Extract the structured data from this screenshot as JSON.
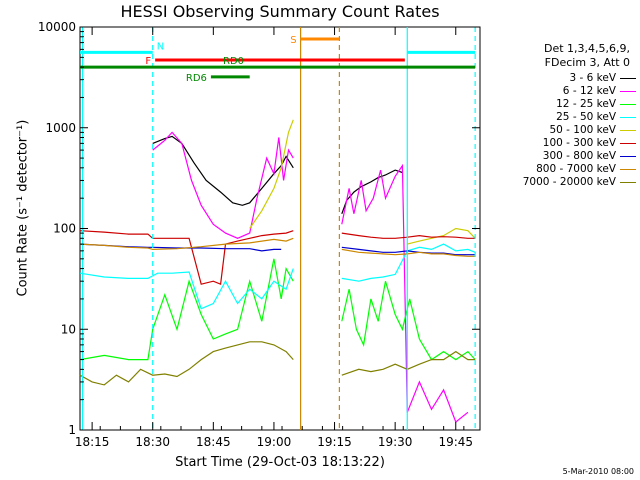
{
  "chart_data": {
    "type": "line",
    "title": "HESSI Observing Summary Count Rates",
    "xlabel": "Start Time (29-Oct-03 18:13:22)",
    "ylabel": "Count Rate (s⁻¹ detector⁻¹)",
    "yscale": "log",
    "ylim": [
      1,
      10000
    ],
    "xlim_minutes": [
      18.2,
      19.85
    ],
    "x_tick_labels": [
      "18:15",
      "18:30",
      "18:45",
      "19:00",
      "19:15",
      "19:30",
      "19:45"
    ],
    "y_tick_labels": [
      "1",
      "10",
      "100",
      "1000",
      "10000"
    ],
    "legend_header": [
      "Det 1,3,4,5,6,9,",
      "FDecim 3, Att 0"
    ],
    "legend_position": "right",
    "series": [
      {
        "name": "3 - 6 keV",
        "color": "#000000",
        "segments": [
          [
            [
              18.5,
              700
            ],
            [
              18.55,
              780
            ],
            [
              18.58,
              820
            ],
            [
              18.62,
              700
            ],
            [
              18.67,
              450
            ],
            [
              18.72,
              300
            ],
            [
              18.78,
              230
            ],
            [
              18.83,
              180
            ],
            [
              18.87,
              170
            ],
            [
              18.9,
              180
            ],
            [
              18.95,
              250
            ],
            [
              19.0,
              350
            ],
            [
              19.03,
              420
            ],
            [
              19.05,
              520
            ],
            [
              19.08,
              400
            ]
          ],
          [
            [
              19.28,
              140
            ],
            [
              19.3,
              190
            ],
            [
              19.33,
              230
            ],
            [
              19.36,
              260
            ],
            [
              19.4,
              290
            ],
            [
              19.43,
              320
            ],
            [
              19.46,
              340
            ],
            [
              19.5,
              380
            ],
            [
              19.53,
              360
            ]
          ]
        ]
      },
      {
        "name": "6 - 12 keV",
        "color": "#ff00ff",
        "segments": [
          [
            [
              18.5,
              600
            ],
            [
              18.55,
              750
            ],
            [
              18.58,
              900
            ],
            [
              18.62,
              700
            ],
            [
              18.66,
              300
            ],
            [
              18.7,
              170
            ],
            [
              18.75,
              110
            ],
            [
              18.8,
              90
            ],
            [
              18.85,
              80
            ],
            [
              18.9,
              90
            ],
            [
              18.93,
              200
            ],
            [
              18.97,
              500
            ],
            [
              19.0,
              350
            ],
            [
              19.02,
              800
            ],
            [
              19.04,
              300
            ],
            [
              19.06,
              600
            ],
            [
              19.08,
              500
            ]
          ],
          [
            [
              19.28,
              110
            ],
            [
              19.31,
              250
            ],
            [
              19.33,
              140
            ],
            [
              19.36,
              300
            ],
            [
              19.38,
              150
            ],
            [
              19.41,
              200
            ],
            [
              19.44,
              380
            ],
            [
              19.46,
              200
            ],
            [
              19.5,
              330
            ],
            [
              19.53,
              420
            ],
            [
              19.55,
              1.5
            ],
            [
              19.6,
              3
            ],
            [
              19.65,
              1.6
            ],
            [
              19.7,
              2.5
            ],
            [
              19.75,
              1.2
            ],
            [
              19.8,
              1.5
            ]
          ]
        ]
      },
      {
        "name": "12 - 25 keV",
        "color": "#00ff00",
        "segments": [
          [
            [
              18.2,
              5
            ],
            [
              18.3,
              5.5
            ],
            [
              18.4,
              5
            ],
            [
              18.48,
              5
            ],
            [
              18.5,
              10
            ],
            [
              18.55,
              22
            ],
            [
              18.6,
              10
            ],
            [
              18.65,
              30
            ],
            [
              18.7,
              14
            ],
            [
              18.75,
              8
            ],
            [
              18.8,
              9
            ],
            [
              18.85,
              10
            ],
            [
              18.9,
              30
            ],
            [
              18.95,
              12
            ],
            [
              19.0,
              50
            ],
            [
              19.03,
              20
            ],
            [
              19.05,
              40
            ],
            [
              19.08,
              30
            ]
          ],
          [
            [
              19.28,
              12
            ],
            [
              19.31,
              25
            ],
            [
              19.34,
              10
            ],
            [
              19.37,
              7
            ],
            [
              19.4,
              20
            ],
            [
              19.43,
              12
            ],
            [
              19.46,
              30
            ],
            [
              19.5,
              14
            ],
            [
              19.53,
              10
            ],
            [
              19.56,
              20
            ],
            [
              19.6,
              8
            ],
            [
              19.65,
              5
            ],
            [
              19.7,
              6
            ],
            [
              19.75,
              5
            ],
            [
              19.8,
              6
            ],
            [
              19.83,
              5
            ]
          ]
        ]
      },
      {
        "name": "25 - 50 keV",
        "color": "#00ffff",
        "segments": [
          [
            [
              18.2,
              36
            ],
            [
              18.3,
              33
            ],
            [
              18.4,
              32
            ],
            [
              18.48,
              32
            ],
            [
              18.52,
              36
            ],
            [
              18.58,
              36
            ],
            [
              18.65,
              37
            ],
            [
              18.7,
              16
            ],
            [
              18.75,
              18
            ],
            [
              18.8,
              30
            ],
            [
              18.85,
              18
            ],
            [
              18.9,
              25
            ],
            [
              18.95,
              20
            ],
            [
              19.0,
              30
            ],
            [
              19.05,
              25
            ],
            [
              19.08,
              40
            ]
          ],
          [
            [
              19.28,
              32
            ],
            [
              19.35,
              30
            ],
            [
              19.4,
              32
            ],
            [
              19.45,
              33
            ],
            [
              19.5,
              35
            ],
            [
              19.55,
              60
            ],
            [
              19.6,
              65
            ],
            [
              19.65,
              62
            ],
            [
              19.7,
              70
            ],
            [
              19.75,
              60
            ],
            [
              19.8,
              62
            ],
            [
              19.83,
              58
            ]
          ]
        ]
      },
      {
        "name": "50 - 100 keV",
        "color": "#cccc00",
        "segments": [
          [
            [
              18.9,
              100
            ],
            [
              18.95,
              150
            ],
            [
              19.0,
              250
            ],
            [
              19.03,
              400
            ],
            [
              19.06,
              900
            ],
            [
              19.08,
              1200
            ]
          ],
          [
            [
              19.55,
              70
            ],
            [
              19.6,
              75
            ],
            [
              19.65,
              80
            ],
            [
              19.7,
              85
            ],
            [
              19.75,
              100
            ],
            [
              19.8,
              95
            ],
            [
              19.83,
              80
            ]
          ]
        ]
      },
      {
        "name": "100 - 300 keV",
        "color": "#cc0000",
        "segments": [
          [
            [
              18.2,
              95
            ],
            [
              18.3,
              92
            ],
            [
              18.4,
              88
            ],
            [
              18.48,
              88
            ],
            [
              18.5,
              80
            ],
            [
              18.55,
              80
            ],
            [
              18.65,
              80
            ],
            [
              18.7,
              28
            ],
            [
              18.75,
              30
            ],
            [
              18.78,
              28
            ],
            [
              18.8,
              70
            ],
            [
              18.85,
              75
            ],
            [
              18.9,
              80
            ],
            [
              18.95,
              85
            ],
            [
              19.0,
              88
            ],
            [
              19.05,
              90
            ],
            [
              19.08,
              95
            ]
          ],
          [
            [
              19.28,
              90
            ],
            [
              19.35,
              85
            ],
            [
              19.4,
              82
            ],
            [
              19.45,
              80
            ],
            [
              19.5,
              80
            ],
            [
              19.55,
              82
            ],
            [
              19.6,
              85
            ],
            [
              19.65,
              82
            ],
            [
              19.7,
              83
            ],
            [
              19.75,
              82
            ],
            [
              19.8,
              80
            ],
            [
              19.83,
              80
            ]
          ]
        ]
      },
      {
        "name": "300 - 800 keV",
        "color": "#0000cc",
        "segments": [
          [
            [
              18.2,
              70
            ],
            [
              18.3,
              68
            ],
            [
              18.4,
              66
            ],
            [
              18.48,
              65
            ],
            [
              18.5,
              65
            ],
            [
              18.6,
              64
            ],
            [
              18.7,
              64
            ],
            [
              18.8,
              63
            ],
            [
              18.9,
              63
            ],
            [
              18.95,
              60
            ],
            [
              19.0,
              62
            ],
            [
              19.03,
              62
            ]
          ],
          [
            [
              19.28,
              65
            ],
            [
              19.35,
              62
            ],
            [
              19.4,
              60
            ],
            [
              19.45,
              58
            ],
            [
              19.5,
              58
            ],
            [
              19.55,
              60
            ],
            [
              19.6,
              58
            ],
            [
              19.65,
              57
            ],
            [
              19.7,
              57
            ],
            [
              19.75,
              55
            ],
            [
              19.8,
              55
            ],
            [
              19.83,
              55
            ]
          ]
        ]
      },
      {
        "name": "800 - 7000 keV",
        "color": "#cc8800",
        "segments": [
          [
            [
              18.2,
              70
            ],
            [
              18.3,
              68
            ],
            [
              18.4,
              65
            ],
            [
              18.48,
              64
            ],
            [
              18.5,
              62
            ],
            [
              18.6,
              63
            ],
            [
              18.7,
              66
            ],
            [
              18.8,
              70
            ],
            [
              18.9,
              72
            ],
            [
              19.0,
              78
            ],
            [
              19.05,
              75
            ],
            [
              19.08,
              80
            ]
          ],
          [
            [
              19.28,
              62
            ],
            [
              19.35,
              58
            ],
            [
              19.4,
              57
            ],
            [
              19.45,
              56
            ],
            [
              19.5,
              55
            ],
            [
              19.55,
              56
            ],
            [
              19.6,
              58
            ],
            [
              19.65,
              56
            ],
            [
              19.7,
              56
            ],
            [
              19.75,
              54
            ],
            [
              19.8,
              53
            ],
            [
              19.83,
              53
            ]
          ]
        ]
      },
      {
        "name": "7000 - 20000 keV",
        "color": "#808000",
        "segments": [
          [
            [
              18.2,
              3.5
            ],
            [
              18.25,
              3
            ],
            [
              18.3,
              2.8
            ],
            [
              18.35,
              3.5
            ],
            [
              18.4,
              3
            ],
            [
              18.45,
              4
            ],
            [
              18.5,
              3.5
            ],
            [
              18.55,
              3.6
            ],
            [
              18.6,
              3.4
            ],
            [
              18.65,
              4
            ],
            [
              18.7,
              5
            ],
            [
              18.75,
              6
            ],
            [
              18.8,
              6.5
            ],
            [
              18.85,
              7
            ],
            [
              18.9,
              7.5
            ],
            [
              18.95,
              7.5
            ],
            [
              19.0,
              7
            ],
            [
              19.05,
              6
            ],
            [
              19.08,
              5
            ]
          ],
          [
            [
              19.28,
              3.5
            ],
            [
              19.35,
              4
            ],
            [
              19.4,
              3.8
            ],
            [
              19.45,
              4
            ],
            [
              19.5,
              4.5
            ],
            [
              19.55,
              4
            ],
            [
              19.6,
              4.5
            ],
            [
              19.65,
              5
            ],
            [
              19.7,
              5
            ],
            [
              19.75,
              6
            ],
            [
              19.8,
              5
            ],
            [
              19.83,
              5
            ]
          ]
        ]
      }
    ],
    "flag_bars": [
      {
        "label": "N",
        "color": "#00ffff",
        "level": 5600,
        "segments": [
          [
            18.2,
            18.5
          ],
          [
            19.55,
            19.83
          ]
        ]
      },
      {
        "label": "F",
        "color": "#ff0000",
        "level": 4700,
        "segments": [
          [
            18.51,
            19.54
          ]
        ]
      },
      {
        "label": "S",
        "color": "#ff8800",
        "level": 7600,
        "segments": [
          [
            19.11,
            19.27
          ]
        ]
      },
      {
        "label": "RD0",
        "color": "#008800",
        "level": 4000,
        "segments": [
          [
            18.2,
            19.83
          ]
        ]
      },
      {
        "label": "RD6",
        "color": "#008800",
        "level": 3200,
        "segments": [
          [
            18.74,
            18.9
          ]
        ]
      }
    ],
    "vertical_markers": [
      {
        "color": "#00ffff",
        "style": "dashed",
        "x": 18.5
      },
      {
        "color": "#00ffff",
        "style": "solid",
        "x": 19.55
      },
      {
        "color": "#00ffff",
        "style": "dashed",
        "x": 19.83
      },
      {
        "color": "#00ffff",
        "style": "solid",
        "x": 18.21
      },
      {
        "color": "#cc8800",
        "style": "solid",
        "x": 19.11
      },
      {
        "color": "#cc8800",
        "style": "dashed",
        "x": 19.27
      }
    ],
    "grid": false
  },
  "footer_stamp": "5-Mar-2010 08:00"
}
